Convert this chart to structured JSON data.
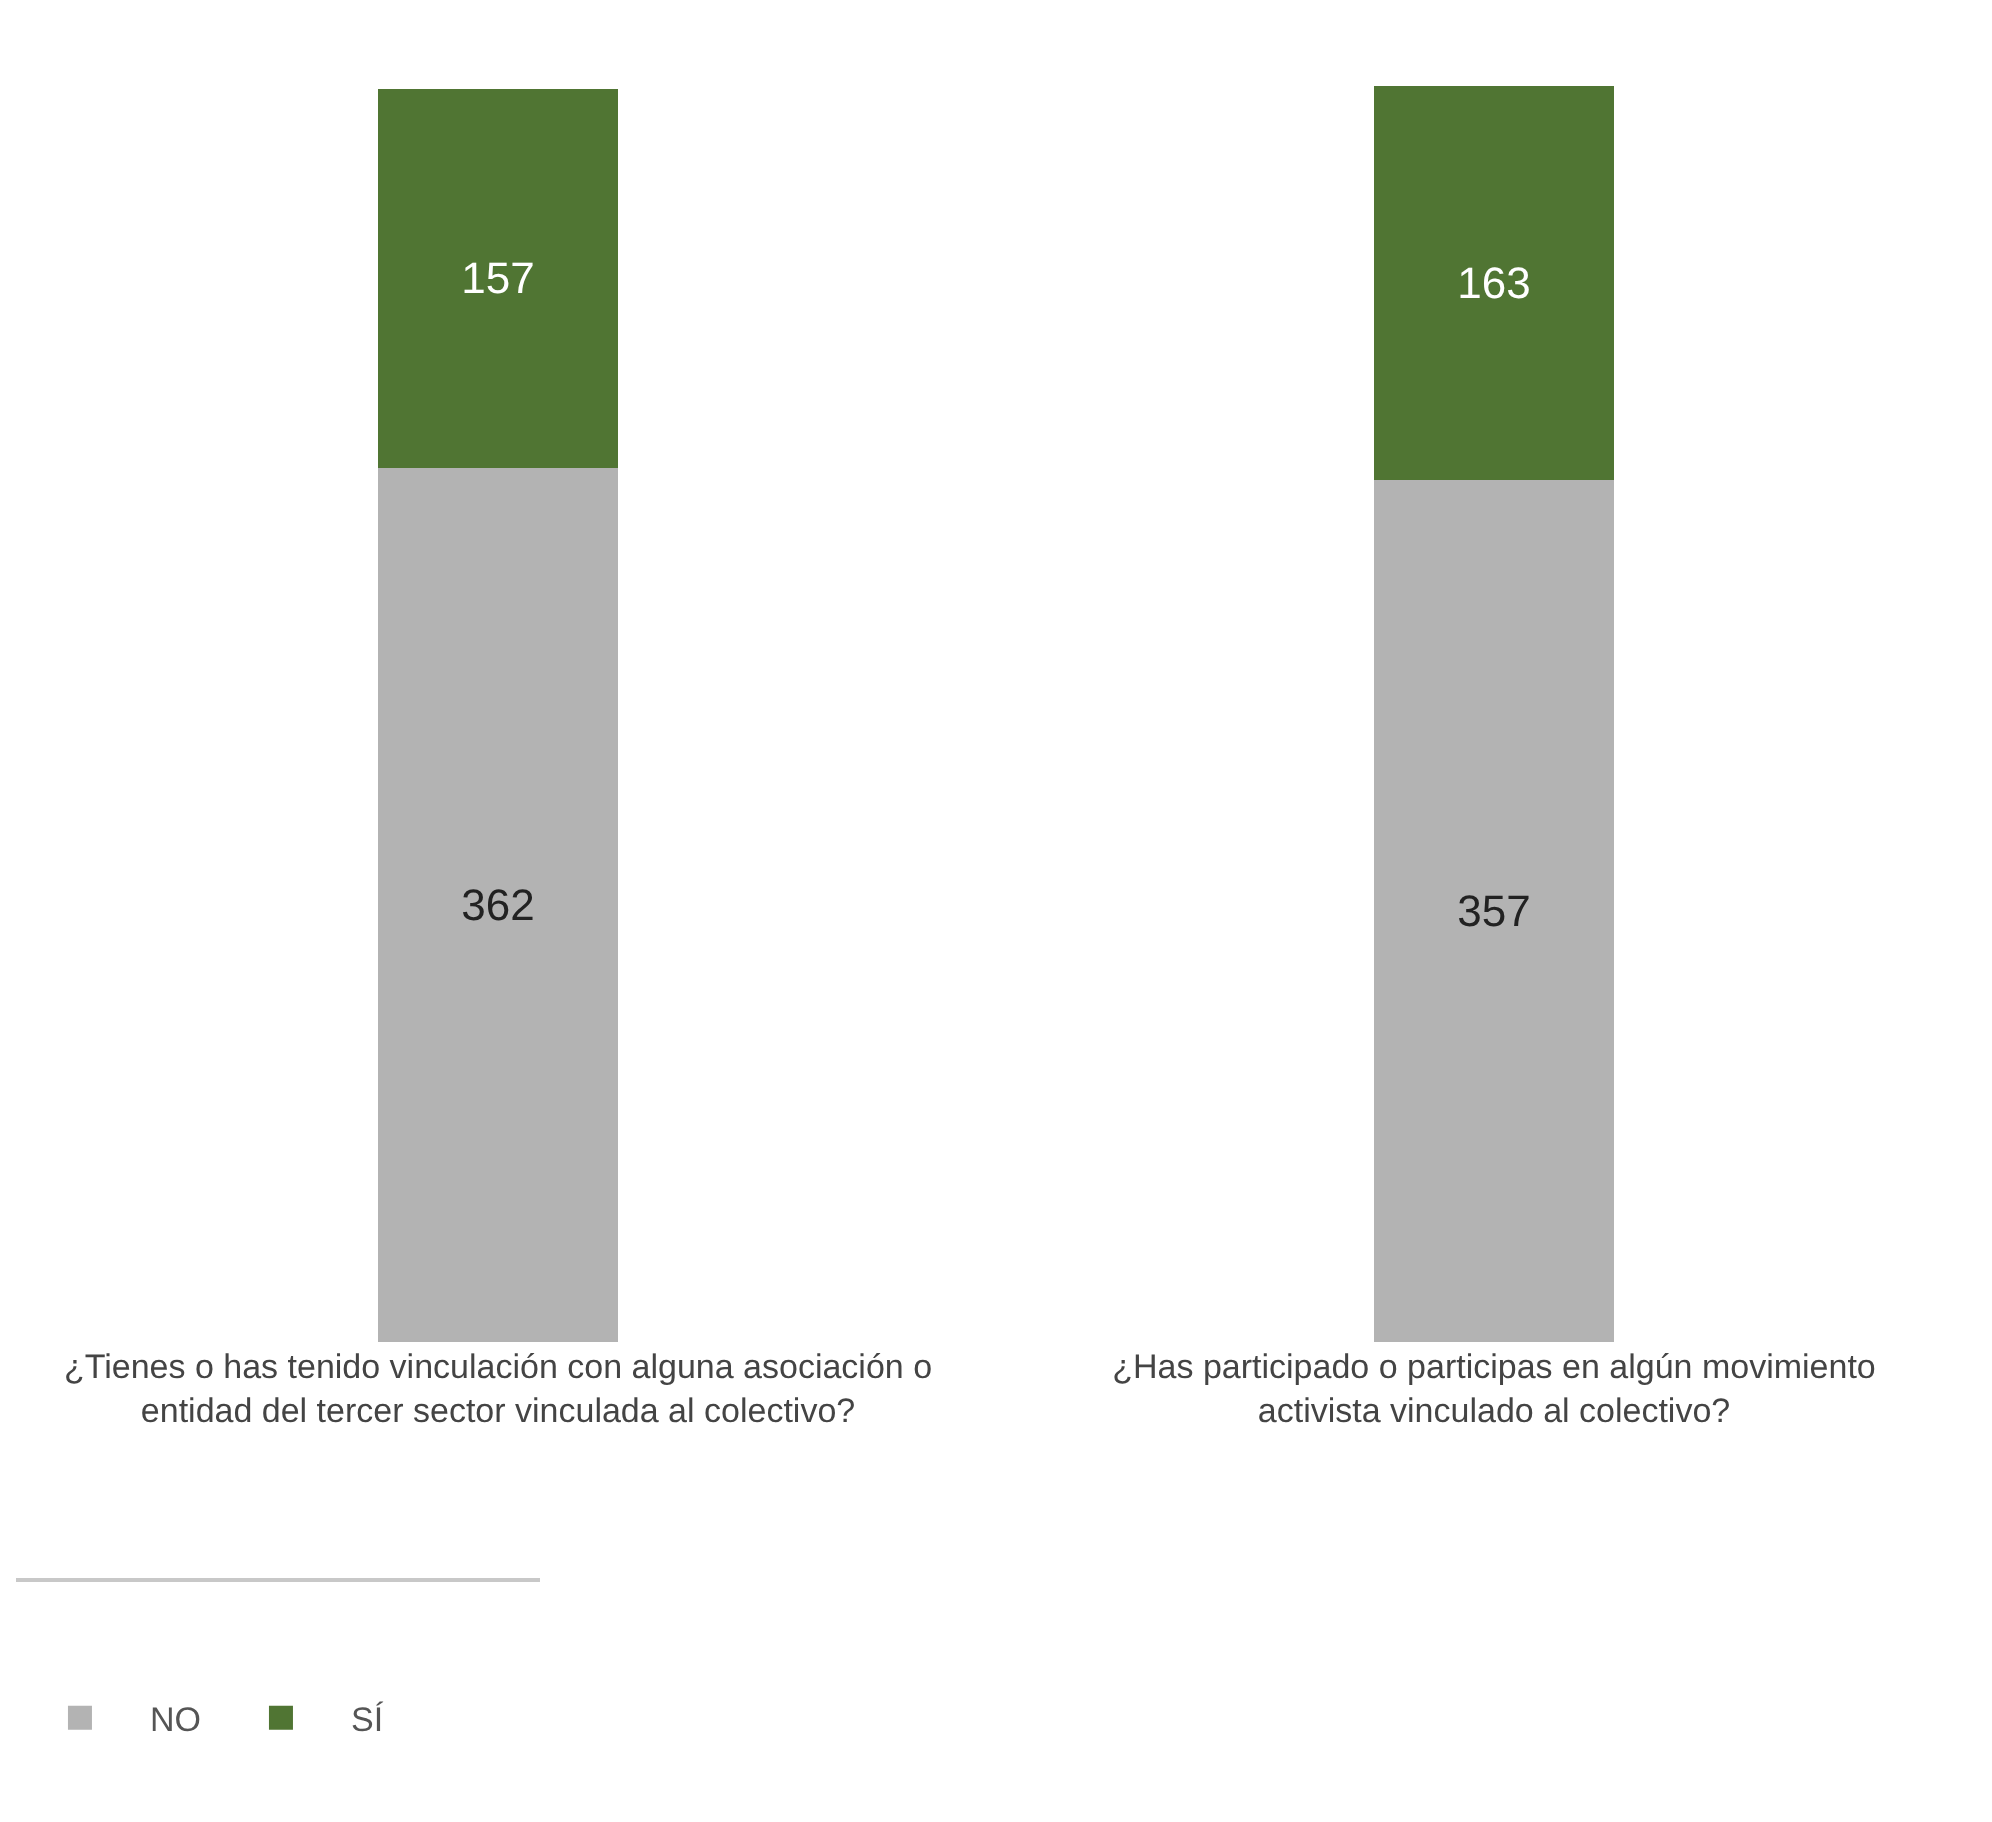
{
  "chart_data": {
    "type": "bar",
    "stacked": true,
    "data_labels": true,
    "legend": "bottom left",
    "categories": [
      "¿Tienes o has tenido vinculación con alguna asociación o entidad del tercer sector vinculada al colectivo?",
      "¿Has participado o participas en algún movimiento activista vinculado al colectivo?"
    ],
    "series": [
      {
        "name": "NO",
        "color": "#b3b3b3",
        "values": [
          362,
          357
        ]
      },
      {
        "name": "SÍ",
        "color": "#507533",
        "values": [
          157,
          163
        ]
      }
    ]
  }
}
